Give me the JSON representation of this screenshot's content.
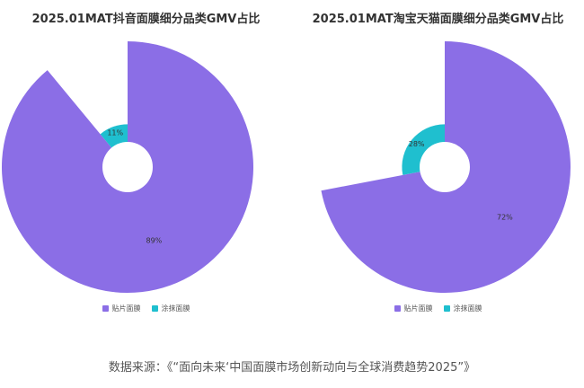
{
  "chart_data": [
    {
      "type": "pie",
      "title": "2025.01MAT抖音面膜细分品类GMV占比",
      "categories": [
        "贴片面膜",
        "涂抹面膜"
      ],
      "values": [
        89,
        11
      ],
      "labels": [
        "89%",
        "11%"
      ],
      "colors": [
        "#8b6ee6",
        "#1fbfcf"
      ],
      "legend_position": "bottom"
    },
    {
      "type": "pie",
      "title": "2025.01MAT淘宝天猫面膜细分品类GMV占比",
      "categories": [
        "贴片面膜",
        "涂抹面膜"
      ],
      "values": [
        72,
        28
      ],
      "labels": [
        "72%",
        "28%"
      ],
      "colors": [
        "#8b6ee6",
        "#1fbfcf"
      ],
      "legend_position": "bottom"
    }
  ],
  "source_note": "数据来源：《“面向未来‘中国面膜市场创新动向与全球消费趋势2025”》"
}
